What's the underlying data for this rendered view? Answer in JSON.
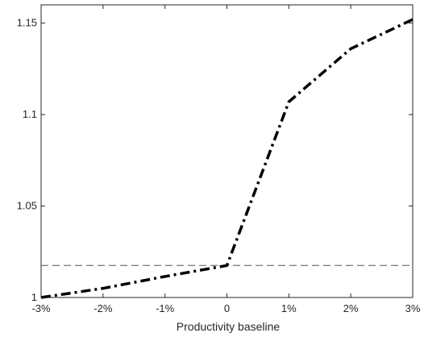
{
  "chart_data": {
    "type": "line",
    "title": "",
    "xlabel": "Productivity baseline",
    "ylabel": "",
    "x": [
      -3,
      -2,
      -1,
      0,
      1,
      2,
      3
    ],
    "x_tick_values": [
      -3,
      -2,
      -1,
      0,
      1,
      2,
      3
    ],
    "x_tick_labels": [
      "-3%",
      "-2%",
      "-1%",
      "0",
      "1%",
      "2%",
      "3%"
    ],
    "y_tick_values": [
      1,
      1.05,
      1.1,
      1.15
    ],
    "y_tick_labels": [
      "1",
      "1.05",
      "1.1",
      "1.15"
    ],
    "xlim": [
      -3,
      3
    ],
    "ylim": [
      1,
      1.16
    ],
    "grid": false,
    "series": [
      {
        "values": [
          1.0,
          1.005,
          1.0115,
          1.0175,
          1.107,
          1.136,
          1.152
        ],
        "color": "#000000",
        "style": "dash-dot"
      }
    ],
    "reference_lines": [
      {
        "orientation": "horizontal",
        "y": 1.0175,
        "color": "#555555",
        "style": "dashed"
      }
    ]
  }
}
